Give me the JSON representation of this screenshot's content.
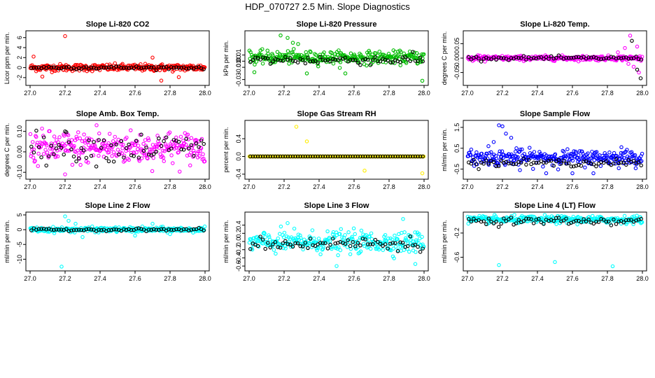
{
  "figure_title": "HDP_070727  2.5 Min. Slope Diagnostics",
  "chart_data": [
    {
      "type": "scatter",
      "title": "Slope Li-820 CO2",
      "ylabel": "Licor ppm per min.",
      "xlim": [
        27.0,
        28.0
      ],
      "ylim": [
        -3.0,
        6.8
      ],
      "xticks": [
        "27.0",
        "27.2",
        "27.4",
        "27.6",
        "27.8",
        "28.0"
      ],
      "yticks": [
        -2,
        0,
        2,
        4,
        6
      ],
      "ytick_labels": [
        "-2",
        "0",
        "2",
        "4",
        "6"
      ],
      "series": [
        {
          "name": "main",
          "color": "#ff0000",
          "center": 0,
          "spread": 0.35,
          "outliers": [
            [
              27.2,
              6.3
            ],
            [
              27.02,
              2.2
            ],
            [
              27.7,
              2.0
            ],
            [
              27.85,
              -1.9
            ],
            [
              27.07,
              -1.8
            ],
            [
              27.75,
              -2.6
            ]
          ]
        },
        {
          "name": "slope",
          "color": "#000000",
          "center": 0,
          "spread": 0.15,
          "outliers": []
        }
      ]
    },
    {
      "type": "scatter",
      "title": "Slope Li-820 Pressure",
      "ylabel": "kPa per min.",
      "xlim": [
        27.0,
        28.0
      ],
      "ylim": [
        -0.035,
        0.045
      ],
      "xticks": [
        "27.0",
        "27.2",
        "27.4",
        "27.6",
        "27.8",
        "28.0"
      ],
      "yticks": [
        -0.03,
        -0.01,
        0.0,
        0.01
      ],
      "ytick_labels": [
        "-0.03",
        "-0.01",
        "0.00",
        "0.01"
      ],
      "series": [
        {
          "name": "main",
          "color": "#00bb00",
          "center": 0.006,
          "spread": 0.005,
          "outliers": [
            [
              27.18,
              0.042
            ],
            [
              27.22,
              0.038
            ],
            [
              27.25,
              0.03
            ],
            [
              27.28,
              0.028
            ],
            [
              27.03,
              -0.018
            ],
            [
              27.33,
              -0.02
            ],
            [
              27.55,
              -0.02
            ],
            [
              27.99,
              -0.032
            ]
          ]
        },
        {
          "name": "slope",
          "color": "#000000",
          "center": 0.002,
          "spread": 0.004,
          "outliers": []
        }
      ]
    },
    {
      "type": "scatter",
      "title": "Slope Li-820 Temp.",
      "ylabel": "degrees C per min.",
      "xlim": [
        27.0,
        28.0
      ],
      "ylim": [
        -0.085,
        0.085
      ],
      "xticks": [
        "27.0",
        "27.2",
        "27.4",
        "27.6",
        "27.8",
        "28.0"
      ],
      "yticks": [
        -0.05,
        0.0,
        0.05
      ],
      "ytick_labels": [
        "-0.05",
        "0.000",
        "0.05"
      ],
      "series": [
        {
          "name": "main",
          "color": "#ff00ff",
          "center": 0,
          "spread": 0.004,
          "outliers": [
            [
              27.03,
              -0.01
            ],
            [
              27.06,
              0.01
            ],
            [
              27.1,
              -0.012
            ],
            [
              27.86,
              0.02
            ],
            [
              27.9,
              0.035
            ],
            [
              27.93,
              0.078
            ],
            [
              27.95,
              -0.03
            ],
            [
              27.97,
              0.04
            ],
            [
              27.98,
              -0.05
            ],
            [
              27.92,
              -0.02
            ]
          ]
        },
        {
          "name": "slope",
          "color": "#000000",
          "center": 0,
          "spread": 0.003,
          "outliers": [
            [
              27.94,
              0.06
            ],
            [
              27.99,
              -0.07
            ],
            [
              27.97,
              -0.04
            ]
          ]
        }
      ]
    },
    {
      "type": "scatter",
      "title": "Slope Amb. Box Temp.",
      "ylabel": "degrees C per min.",
      "xlim": [
        27.0,
        28.0
      ],
      "ylim": [
        -0.12,
        0.14
      ],
      "xticks": [
        "27.0",
        "27.2",
        "27.4",
        "27.6",
        "27.8",
        "28.0"
      ],
      "yticks": [
        -0.1,
        0.0,
        0.1
      ],
      "ytick_labels": [
        "-0.10",
        "0.00",
        "0.10"
      ],
      "series": [
        {
          "name": "main",
          "color": "#ff00ff",
          "center": 0.02,
          "spread": 0.04,
          "outliers": [
            [
              27.38,
              0.13
            ],
            [
              27.2,
              -0.11
            ]
          ]
        },
        {
          "name": "slope",
          "color": "#000000",
          "center": 0.02,
          "spread": 0.035,
          "outliers": [
            [
              27.2,
              0.1
            ]
          ]
        }
      ]
    },
    {
      "type": "scatter",
      "title": "Slope Gas Stream RH",
      "ylabel": "percent per min.",
      "xlim": [
        27.0,
        28.0
      ],
      "ylim": [
        -0.45,
        0.75
      ],
      "xticks": [
        "27.0",
        "27.2",
        "27.4",
        "27.6",
        "27.8",
        "28.0"
      ],
      "yticks": [
        -0.4,
        0.0,
        0.4
      ],
      "ytick_labels": [
        "-0.4",
        "0.0",
        "0.4"
      ],
      "series": [
        {
          "name": "main",
          "color": "#ffee00",
          "center": 0,
          "spread": 0.0,
          "outliers": [
            [
              27.27,
              0.67
            ],
            [
              27.33,
              0.34
            ],
            [
              27.66,
              -0.32
            ],
            [
              27.99,
              -0.38
            ]
          ]
        },
        {
          "name": "slope",
          "color": "#000000",
          "center": 0,
          "spread": 0.0,
          "outliers": []
        }
      ]
    },
    {
      "type": "scatter",
      "title": "Slope Sample Flow",
      "ylabel": "ml/min per min.",
      "xlim": [
        27.0,
        28.0
      ],
      "ylim": [
        -0.85,
        1.7
      ],
      "xticks": [
        "27.0",
        "27.2",
        "27.4",
        "27.6",
        "27.8",
        "28.0"
      ],
      "yticks": [
        -0.5,
        0.5,
        1.5
      ],
      "ytick_labels": [
        "-0.5",
        "0.5",
        "1.5"
      ],
      "series": [
        {
          "name": "main",
          "color": "#0000ff",
          "center": 0.05,
          "spread": 0.18,
          "outliers": [
            [
              27.18,
              1.6
            ],
            [
              27.2,
              1.55
            ],
            [
              27.22,
              1.2
            ],
            [
              27.25,
              1.0
            ],
            [
              27.15,
              0.8
            ],
            [
              27.12,
              0.6
            ],
            [
              27.28,
              0.5
            ],
            [
              27.3,
              -0.55
            ],
            [
              27.45,
              -0.7
            ],
            [
              27.6,
              -0.7
            ],
            [
              27.72,
              -0.7
            ],
            [
              27.88,
              0.55
            ]
          ]
        },
        {
          "name": "slope",
          "color": "#000000",
          "center": -0.2,
          "spread": 0.08,
          "outliers": []
        }
      ]
    },
    {
      "type": "scatter",
      "title": "Slope Line 2 Flow",
      "ylabel": "ml/min per min.",
      "xlim": [
        27.0,
        28.0
      ],
      "ylim": [
        -13.0,
        5.0
      ],
      "xticks": [
        "27.0",
        "27.2",
        "27.4",
        "27.6",
        "27.8",
        "28.0"
      ],
      "yticks": [
        -10,
        -5,
        0,
        5
      ],
      "ytick_labels": [
        "-10",
        "-5",
        "0",
        "5"
      ],
      "series": [
        {
          "name": "main",
          "color": "#00ffff",
          "center": 0,
          "spread": 0.4,
          "outliers": [
            [
              27.18,
              -12.5
            ],
            [
              27.2,
              4.5
            ],
            [
              27.22,
              3.0
            ],
            [
              27.26,
              2.0
            ],
            [
              27.3,
              -2.5
            ],
            [
              27.6,
              -2.0
            ],
            [
              27.7,
              2.0
            ],
            [
              27.8,
              -1.5
            ]
          ]
        },
        {
          "name": "slope",
          "color": "#000000",
          "center": 0,
          "spread": 0.2,
          "outliers": []
        }
      ]
    },
    {
      "type": "scatter",
      "title": "Slope Line 3 Flow",
      "ylabel": "ml/min per min.",
      "xlim": [
        27.0,
        28.0
      ],
      "ylim": [
        -0.65,
        0.65
      ],
      "xticks": [
        "27.0",
        "27.2",
        "27.4",
        "27.6",
        "27.8",
        "28.0"
      ],
      "yticks": [
        -0.6,
        -0.4,
        -0.2,
        0.0,
        0.2,
        0.4
      ],
      "ytick_labels": [
        "-0.6",
        "-0.4",
        "-0.2",
        "0.0",
        "0.2",
        "0.4"
      ],
      "series": [
        {
          "name": "main",
          "color": "#00ffff",
          "center": -0.02,
          "spread": 0.13,
          "outliers": [
            [
              27.22,
              0.45
            ],
            [
              27.88,
              0.55
            ],
            [
              27.5,
              -0.6
            ],
            [
              27.95,
              -0.55
            ]
          ]
        },
        {
          "name": "slope",
          "color": "#000000",
          "center": -0.05,
          "spread": 0.08,
          "outliers": []
        }
      ]
    },
    {
      "type": "scatter",
      "title": "Slope Line 4 (LT) Flow",
      "ylabel": "ml/min per min.",
      "xlim": [
        27.0,
        28.0
      ],
      "ylim": [
        -0.78,
        0.1
      ],
      "xticks": [
        "27.0",
        "27.2",
        "27.4",
        "27.6",
        "27.8",
        "28.0"
      ],
      "yticks": [
        -0.6,
        -0.2
      ],
      "ytick_labels": [
        "-0.6",
        "-0.2"
      ],
      "series": [
        {
          "name": "main",
          "color": "#00ffff",
          "center": 0.02,
          "spread": 0.03,
          "outliers": [
            [
              27.18,
              -0.73
            ],
            [
              27.5,
              -0.68
            ],
            [
              27.83,
              -0.75
            ]
          ]
        },
        {
          "name": "slope",
          "color": "#000000",
          "center": 0.0,
          "spread": 0.03,
          "outliers": []
        }
      ]
    }
  ]
}
